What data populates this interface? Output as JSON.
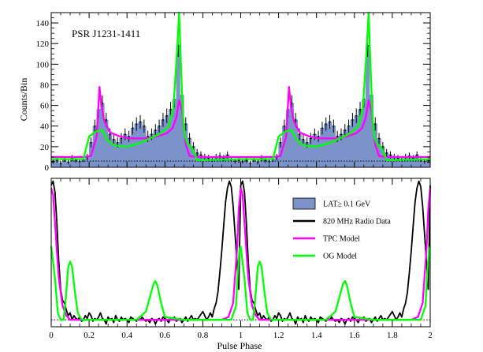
{
  "chart_data": [
    {
      "type": "bar",
      "panel": "top",
      "annotation": "PSR J1231-1411",
      "ylabel": "Counts/Bin",
      "xlabel": "",
      "xlim": [
        0,
        2
      ],
      "ylim": [
        0,
        150
      ],
      "x_ticks": [
        0,
        0.2,
        0.4,
        0.6,
        0.8,
        1,
        1.2,
        1.4,
        1.6,
        1.8,
        2
      ],
      "y_ticks": [
        0,
        20,
        40,
        60,
        80,
        100,
        120,
        140
      ],
      "y_tick_labels": [
        "0",
        "20",
        "40",
        "60",
        "80",
        "100",
        "120",
        "140"
      ],
      "background_level": 6,
      "colors": {
        "lat": "#7b93c9",
        "tpc": "#ff00ff",
        "og": "#00ff00",
        "radio": "#000000"
      },
      "bin_centers": [
        0.01,
        0.03,
        0.05,
        0.07,
        0.09,
        0.11,
        0.13,
        0.15,
        0.17,
        0.19,
        0.21,
        0.23,
        0.25,
        0.27,
        0.29,
        0.31,
        0.33,
        0.35,
        0.37,
        0.39,
        0.41,
        0.43,
        0.45,
        0.47,
        0.49,
        0.51,
        0.53,
        0.55,
        0.57,
        0.59,
        0.61,
        0.63,
        0.65,
        0.67,
        0.69,
        0.71,
        0.73,
        0.75,
        0.77,
        0.79,
        0.81,
        0.83,
        0.85,
        0.87,
        0.89,
        0.91,
        0.93,
        0.95,
        0.97,
        0.99
      ],
      "lat_counts": [
        6,
        7,
        4,
        8,
        5,
        9,
        7,
        6,
        8,
        10,
        24,
        40,
        56,
        62,
        46,
        32,
        27,
        24,
        28,
        32,
        30,
        38,
        42,
        44,
        40,
        30,
        32,
        36,
        40,
        46,
        50,
        56,
        66,
        118,
        70,
        42,
        28,
        20,
        14,
        12,
        10,
        9,
        8,
        10,
        11,
        9,
        12,
        8,
        6,
        7
      ],
      "series": [
        {
          "name": "TPC Model",
          "x": [
            0,
            0.1,
            0.17,
            0.21,
            0.24,
            0.255,
            0.265,
            0.28,
            0.31,
            0.36,
            0.42,
            0.5,
            0.56,
            0.61,
            0.64,
            0.66,
            0.675,
            0.69,
            0.71,
            0.73,
            0.76,
            0.8,
            0.9,
            1.0
          ],
          "y": [
            10,
            10,
            10,
            11,
            30,
            78,
            60,
            45,
            34,
            30,
            28,
            28,
            30,
            33,
            38,
            48,
            65,
            55,
            22,
            11,
            10,
            10,
            10,
            10
          ]
        },
        {
          "name": "OG Model",
          "x": [
            0,
            0.08,
            0.17,
            0.2,
            0.24,
            0.27,
            0.3,
            0.34,
            0.4,
            0.46,
            0.52,
            0.58,
            0.62,
            0.645,
            0.665,
            0.675,
            0.685,
            0.695,
            0.705,
            0.72,
            0.74,
            0.77,
            0.8,
            1.0
          ],
          "y": [
            8,
            8,
            8,
            30,
            35,
            36,
            25,
            21,
            20,
            23,
            28,
            33,
            40,
            58,
            115,
            150,
            100,
            50,
            30,
            22,
            20,
            7,
            7,
            8
          ]
        }
      ]
    },
    {
      "type": "line",
      "panel": "bottom",
      "xlabel": "Pulse Phase",
      "xlim": [
        0,
        2
      ],
      "x_ticks": [
        0,
        0.2,
        0.4,
        0.6,
        0.8,
        1,
        1.2,
        1.4,
        1.6,
        1.8,
        2
      ],
      "x_tick_labels": [
        "0",
        "0.2",
        "0.4",
        "0.6",
        "0.8",
        "1",
        "1.2",
        "1.4",
        "1.6",
        "1.8",
        "2"
      ],
      "ylim": [
        -0.05,
        1.02
      ],
      "baseline": 0,
      "legend_position": "top-right",
      "legend": [
        {
          "label": "LAT≥ 0.1 GeV",
          "kind": "box",
          "color": "#7b93c9"
        },
        {
          "label": "820 MHz Radio Data",
          "kind": "line",
          "color": "#000000"
        },
        {
          "label": "TPC Model",
          "kind": "line",
          "color": "#ff00ff"
        },
        {
          "label": "OG Model",
          "kind": "line",
          "color": "#00ff00"
        }
      ],
      "series": [
        {
          "name": "820 MHz Radio Data",
          "x": [
            0,
            0.01,
            0.02,
            0.03,
            0.04,
            0.05,
            0.06,
            0.07,
            0.08,
            0.09,
            0.1,
            0.11,
            0.12,
            0.13,
            0.14,
            0.15,
            0.16,
            0.17,
            0.18,
            0.19,
            0.2,
            0.21,
            0.22,
            0.23,
            0.24,
            0.25,
            0.26,
            0.27,
            0.28,
            0.29,
            0.3,
            0.31,
            0.32,
            0.33,
            0.34,
            0.35,
            0.36,
            0.37,
            0.38,
            0.39,
            0.4,
            0.41,
            0.42,
            0.43,
            0.44,
            0.45,
            0.46,
            0.47,
            0.48,
            0.49,
            0.5,
            0.51,
            0.52,
            0.53,
            0.54,
            0.55,
            0.56,
            0.57,
            0.58,
            0.59,
            0.6,
            0.61,
            0.62,
            0.63,
            0.64,
            0.65,
            0.66,
            0.67,
            0.68,
            0.69,
            0.7,
            0.71,
            0.72,
            0.73,
            0.74,
            0.75,
            0.76,
            0.77,
            0.78,
            0.79,
            0.8,
            0.81,
            0.82,
            0.83,
            0.84,
            0.85,
            0.86,
            0.87,
            0.88,
            0.89,
            0.9,
            0.91,
            0.92,
            0.93,
            0.94,
            0.95,
            0.96,
            0.97,
            0.98,
            0.99,
            1.0
          ],
          "y": [
            0.97,
            1.0,
            0.92,
            0.7,
            0.42,
            0.22,
            0.14,
            0.12,
            0.07,
            0.03,
            0.05,
            0.0,
            0.03,
            0.01,
            0.0,
            0.02,
            -0.01,
            0.0,
            0.03,
            0.01,
            0.05,
            0.03,
            -0.01,
            0.01,
            0.0,
            0.02,
            0.05,
            0.01,
            0.0,
            -0.03,
            0.02,
            0.0,
            0.01,
            -0.02,
            0.03,
            0.0,
            -0.01,
            0.02,
            0.0,
            0.01,
            0.0,
            -0.02,
            0.02,
            0.01,
            0.0,
            -0.01,
            0.01,
            0.0,
            0.02,
            0.0,
            -0.01,
            0.0,
            -0.02,
            0.01,
            0.0,
            -0.03,
            0.0,
            0.01,
            -0.01,
            0.02,
            0.01,
            0.0,
            -0.02,
            0.01,
            0.0,
            0.02,
            -0.01,
            0.0,
            0.01,
            -0.02,
            0.0,
            0.02,
            -0.01,
            0.01,
            0.03,
            0.0,
            0.01,
            0.0,
            0.02,
            0.04,
            0.06,
            0.03,
            0.0,
            0.02,
            0.05,
            0.02,
            0.08,
            0.12,
            0.2,
            0.34,
            0.5,
            0.68,
            0.85,
            0.95,
            1.0,
            0.96,
            0.82,
            0.62,
            0.42,
            0.22,
            0.97
          ]
        },
        {
          "name": "TPC Model",
          "x": [
            0,
            0.01,
            0.025,
            0.04,
            0.06,
            0.08,
            0.1,
            0.13,
            0.17,
            0.2,
            0.24,
            0.3,
            0.36,
            0.42,
            0.5,
            0.58,
            0.64,
            0.68,
            0.72,
            0.76,
            0.8,
            0.85,
            0.9,
            0.935,
            0.96,
            0.98,
            0.99,
            1.0
          ],
          "y": [
            0.95,
            0.9,
            0.6,
            0.3,
            0.1,
            0.03,
            0.0,
            0.0,
            0.0,
            0.0,
            0.0,
            0.0,
            0.0,
            0.0,
            0.0,
            0.0,
            0.0,
            0.0,
            0.0,
            0.0,
            0.0,
            0.0,
            0.0,
            0.02,
            0.12,
            0.5,
            0.8,
            0.95
          ]
        },
        {
          "name": "OG Model",
          "x": [
            0,
            0.02,
            0.035,
            0.05,
            0.065,
            0.075,
            0.09,
            0.1,
            0.11,
            0.125,
            0.14,
            0.16,
            0.2,
            0.3,
            0.45,
            0.5,
            0.52,
            0.54,
            0.55,
            0.56,
            0.58,
            0.6,
            0.7,
            0.8,
            0.9,
            0.95,
            0.975,
            0.985,
            0.993,
            1.0
          ],
          "y": [
            0.53,
            0.3,
            0.05,
            0.0,
            0.0,
            0.12,
            0.38,
            0.42,
            0.38,
            0.2,
            0.05,
            0.0,
            0.0,
            0.0,
            0.0,
            0.06,
            0.16,
            0.26,
            0.28,
            0.25,
            0.12,
            0.02,
            0.0,
            0.0,
            0.0,
            0.0,
            0.1,
            0.35,
            0.5,
            0.53
          ]
        }
      ]
    }
  ]
}
